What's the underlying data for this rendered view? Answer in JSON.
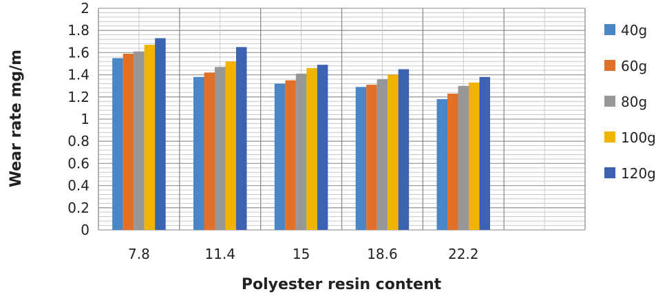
{
  "chart_data": {
    "type": "bar",
    "title": "",
    "xlabel": "Polyester resin content",
    "ylabel": "Wear rate mg/m",
    "ylim": [
      0,
      2
    ],
    "yticks": [
      "0",
      "0.2",
      "0.4",
      "0.6",
      "0.8",
      "1",
      "1.2",
      "1.4",
      "1.6",
      "1.8",
      "2"
    ],
    "categories": [
      "7.8",
      "11.4",
      "15",
      "18.6",
      "22.2",
      ""
    ],
    "grid": true,
    "legend_position": "right",
    "series": [
      {
        "name": "40g",
        "color": "#4a86c5",
        "values": [
          1.55,
          1.38,
          1.32,
          1.29,
          1.18,
          null
        ]
      },
      {
        "name": "60g",
        "color": "#e0702a",
        "values": [
          1.59,
          1.42,
          1.35,
          1.31,
          1.23,
          null
        ]
      },
      {
        "name": "80g",
        "color": "#979797",
        "values": [
          1.61,
          1.47,
          1.41,
          1.36,
          1.3,
          null
        ]
      },
      {
        "name": "100g",
        "color": "#f0b400",
        "values": [
          1.67,
          1.52,
          1.46,
          1.4,
          1.33,
          null
        ]
      },
      {
        "name": "120g",
        "color": "#3d62b2",
        "values": [
          1.73,
          1.65,
          1.49,
          1.45,
          1.38,
          null
        ]
      }
    ]
  }
}
